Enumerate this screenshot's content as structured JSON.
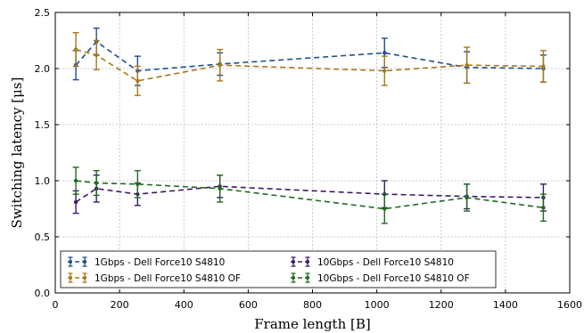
{
  "chart_data": {
    "type": "line",
    "title": "",
    "xlabel": "Frame length [B]",
    "ylabel": "Switching latency [μs]",
    "xlim": [
      0,
      1600
    ],
    "ylim": [
      0.0,
      2.5
    ],
    "xticks": [
      0,
      200,
      400,
      600,
      800,
      1000,
      1200,
      1400,
      1600
    ],
    "yticks": [
      0.0,
      0.5,
      1.0,
      1.5,
      2.0,
      2.5
    ],
    "xtick_labels": [
      "0",
      "200",
      "400",
      "600",
      "800",
      "1000",
      "1200",
      "1400",
      "1600"
    ],
    "ytick_labels": [
      "0.0",
      "0.5",
      "1.0",
      "1.5",
      "2.0",
      "2.5"
    ],
    "grid": true,
    "legend_position": "bottom-left",
    "series": [
      {
        "name": "1Gbps - Dell Force10 S4810",
        "color": "#1f4e8c",
        "x": [
          64,
          128,
          256,
          512,
          1024,
          1280,
          1518
        ],
        "y": [
          2.03,
          2.24,
          1.98,
          2.04,
          2.14,
          2.01,
          2.0
        ],
        "err": [
          0.13,
          0.12,
          0.13,
          0.1,
          0.13,
          0.14,
          0.12
        ]
      },
      {
        "name": "1Gbps - Dell Force10 S4810  OF",
        "color": "#a9791a",
        "x": [
          64,
          128,
          256,
          512,
          1024,
          1280,
          1518
        ],
        "y": [
          2.17,
          2.12,
          1.89,
          2.03,
          1.98,
          2.03,
          2.02
        ],
        "err": [
          0.15,
          0.13,
          0.13,
          0.14,
          0.13,
          0.16,
          0.14
        ]
      },
      {
        "name": "10Gbps - Dell Force10 S4810",
        "color": "#3b1a6b",
        "x": [
          64,
          128,
          256,
          512,
          1024,
          1280,
          1518
        ],
        "y": [
          0.81,
          0.93,
          0.88,
          0.95,
          0.88,
          0.86,
          0.85
        ],
        "err": [
          0.1,
          0.12,
          0.1,
          0.1,
          0.12,
          0.11,
          0.12
        ]
      },
      {
        "name": "10Gbps - Dell Force10 S4810  OF",
        "color": "#1d6b1d",
        "x": [
          64,
          128,
          256,
          512,
          1024,
          1280,
          1518
        ],
        "y": [
          1.0,
          0.98,
          0.97,
          0.93,
          0.75,
          0.85,
          0.76
        ],
        "err": [
          0.12,
          0.11,
          0.12,
          0.12,
          0.13,
          0.12,
          0.12
        ]
      }
    ]
  }
}
